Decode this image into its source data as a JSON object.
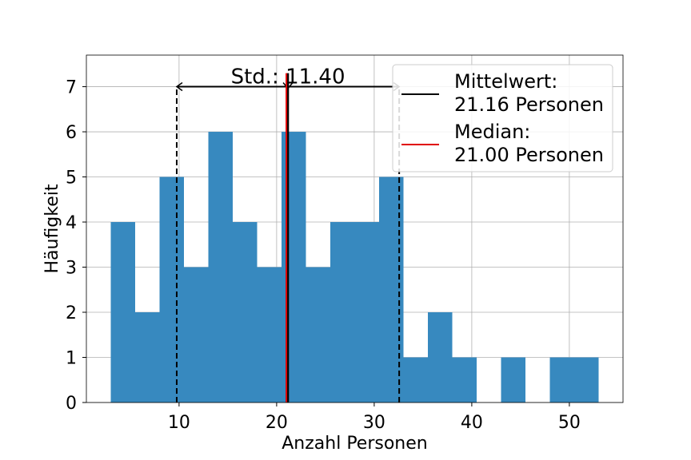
{
  "chart_data": {
    "type": "histogram",
    "xlabel": "Anzahl Personen",
    "ylabel": "Häufigkeit",
    "xlim": [
      0.5,
      55.5
    ],
    "ylim": [
      0,
      7.7
    ],
    "xticks": [
      10,
      20,
      30,
      40,
      50
    ],
    "yticks": [
      0,
      1,
      2,
      3,
      4,
      5,
      6,
      7
    ],
    "grid": true,
    "bin_edges": [
      3,
      5.5,
      8,
      10.5,
      13,
      15.5,
      18,
      20.5,
      23,
      25.5,
      28,
      30.5,
      33,
      35.5,
      38,
      40.5,
      43,
      45.5,
      48,
      50.5,
      53
    ],
    "counts": [
      4,
      2,
      5,
      3,
      6,
      4,
      3,
      6,
      3,
      4,
      4,
      5,
      1,
      2,
      1,
      0,
      1,
      0,
      1,
      1
    ],
    "bar_color": "#3789bf",
    "mean": 21.16,
    "median": 21.0,
    "std": 11.4,
    "std_label": "Std.: 11.40",
    "std_bracket_height": 7,
    "mean_color": "#000000",
    "median_color": "#e00000",
    "legend_position": "top-right",
    "legend": [
      {
        "label_line1": "Mittelwert:",
        "label_line2": "21.16 Personen",
        "color": "#000000"
      },
      {
        "label_line1": "Median:",
        "label_line2": "21.00 Personen",
        "color": "#e00000"
      }
    ]
  }
}
